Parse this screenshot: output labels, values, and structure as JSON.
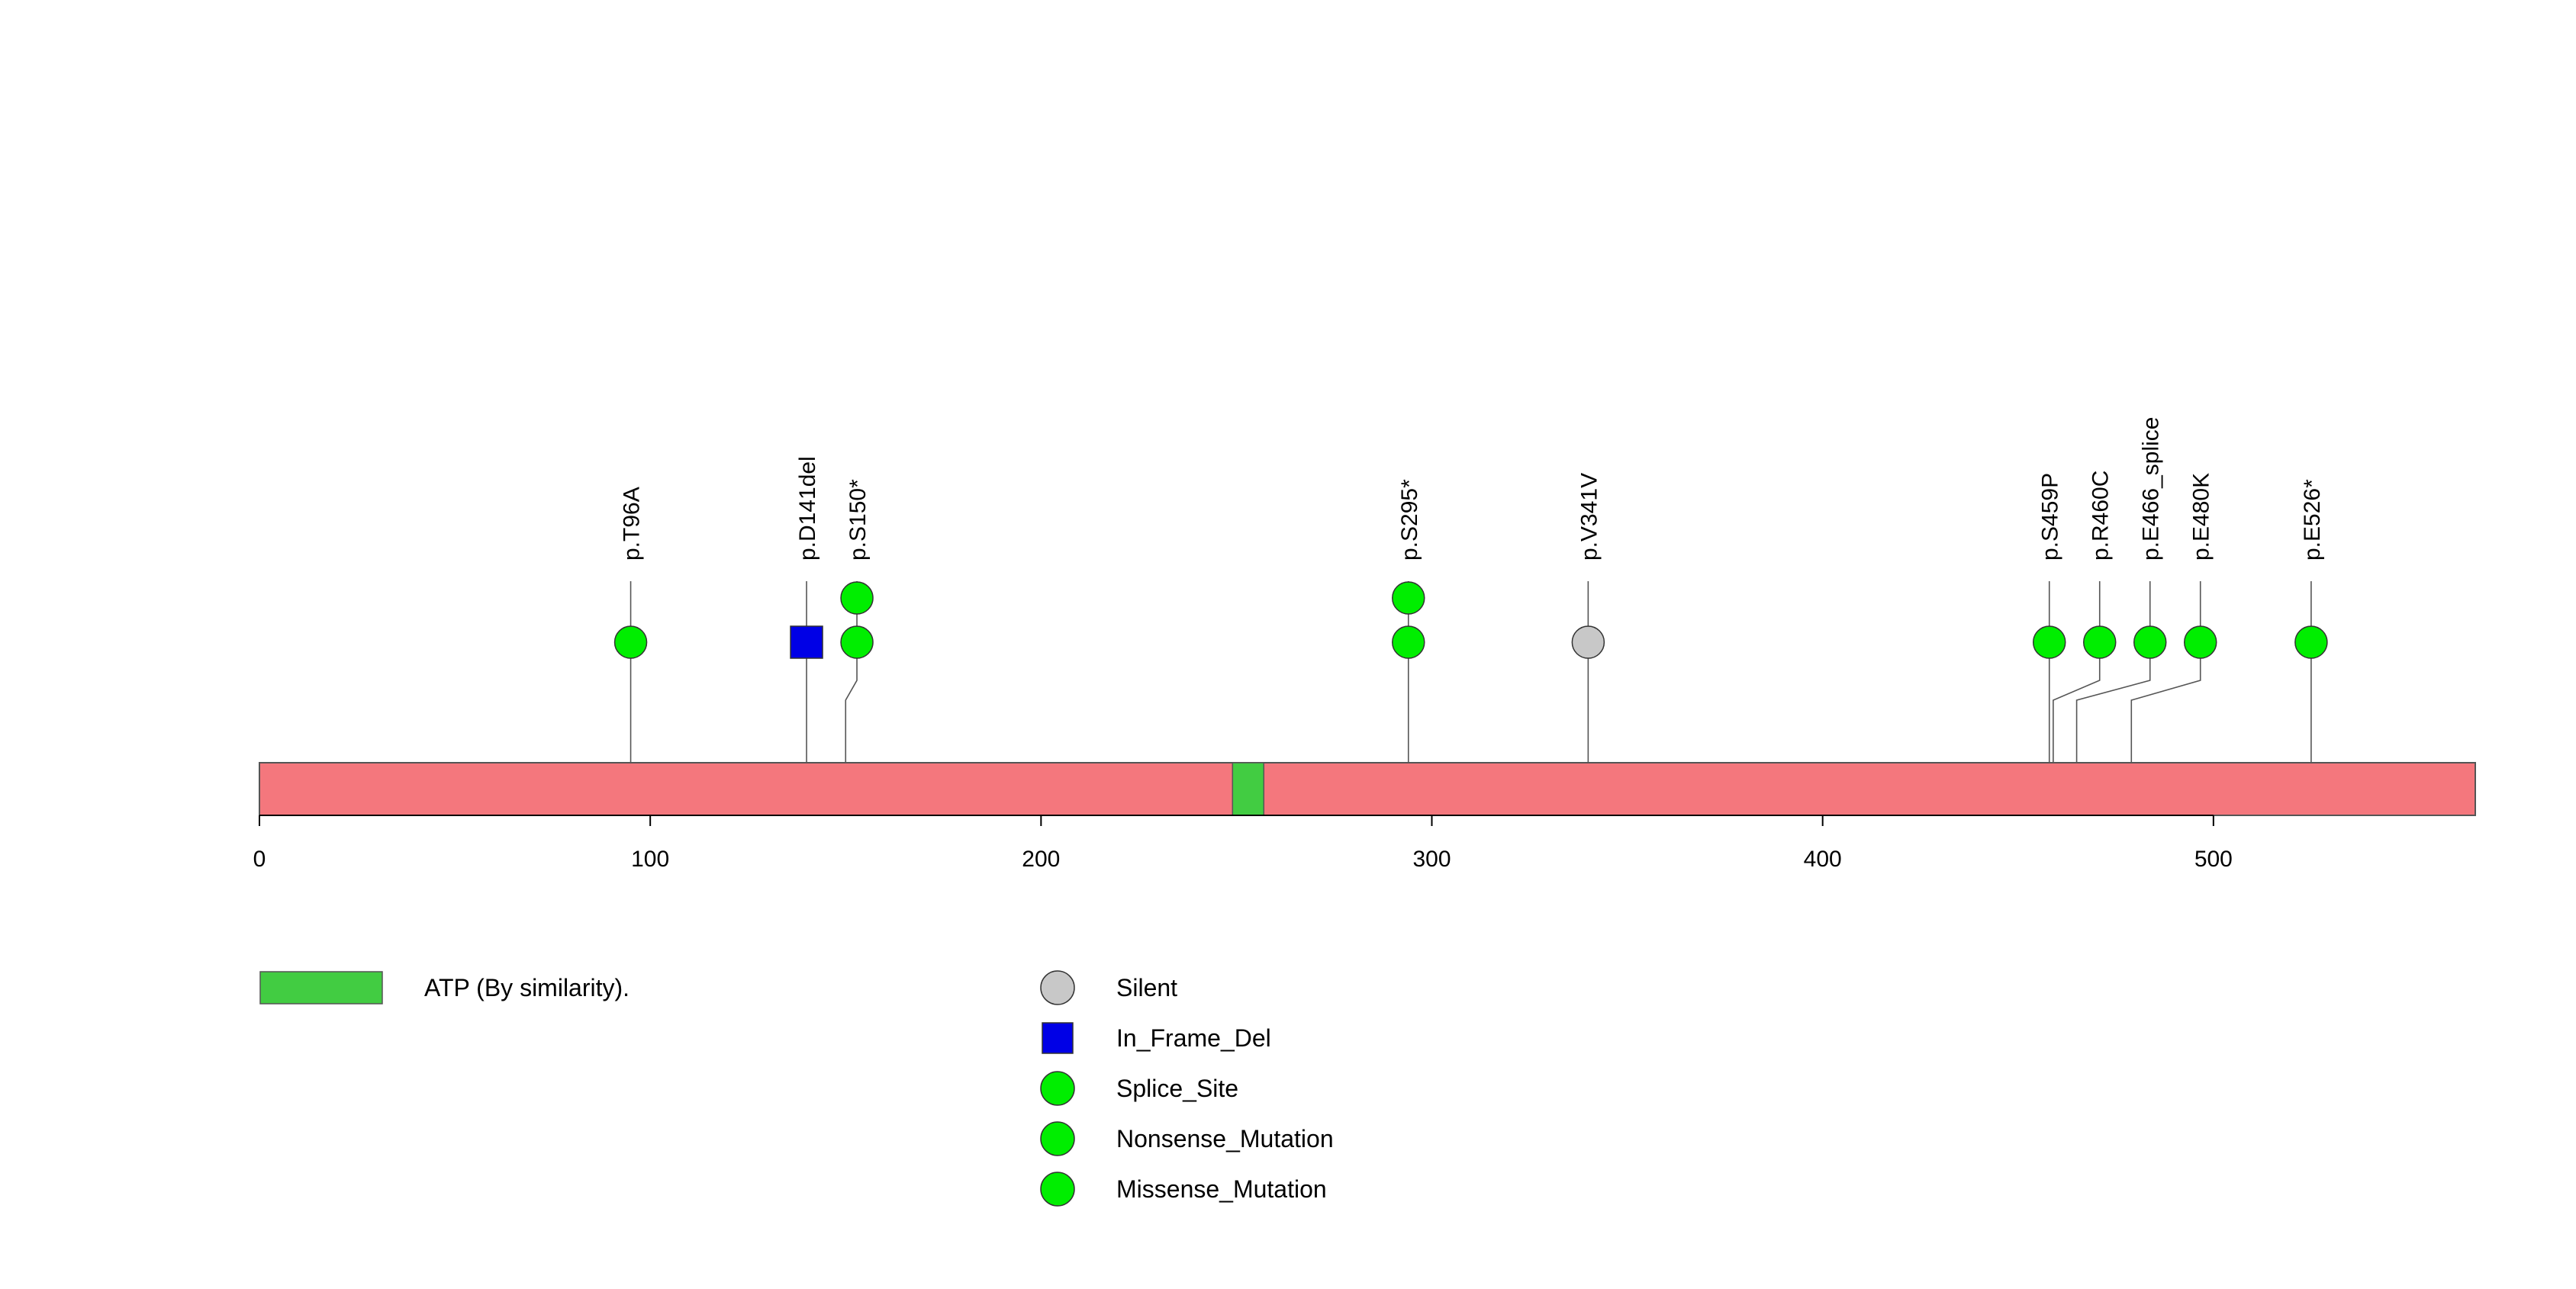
{
  "chart_data": {
    "type": "lollipop",
    "protein_length": 567,
    "x_ticks": [
      0,
      100,
      200,
      300,
      400,
      500
    ],
    "xlim": [
      0,
      567
    ],
    "colors": {
      "protein": "#f4777d",
      "domain": "#42cc42",
      "silent": "#c8c8c8",
      "in_frame_del": "#0000e6",
      "splice_site": "#00ee00",
      "nonsense": "#00ee00",
      "missense": "#00ee00"
    },
    "domains": [
      {
        "name": "ATP (By similarity).",
        "start": 249,
        "end": 257
      }
    ],
    "mutations": [
      {
        "label": "p.T96A",
        "position": 95,
        "count": 1,
        "type": "Missense_Mutation",
        "shape": "circle"
      },
      {
        "label": "p.D141del",
        "position": 140,
        "count": 1,
        "type": "In_Frame_Del",
        "shape": "square"
      },
      {
        "label": "p.S150*",
        "position": 150,
        "count": 2,
        "type": "Nonsense_Mutation",
        "shape": "circle"
      },
      {
        "label": "p.S295*",
        "position": 294,
        "count": 2,
        "type": "Nonsense_Mutation",
        "shape": "circle"
      },
      {
        "label": "p.V341V",
        "position": 340,
        "count": 1,
        "type": "Silent",
        "shape": "circle"
      },
      {
        "label": "p.S459P",
        "position": 458,
        "count": 1,
        "type": "Missense_Mutation",
        "shape": "circle"
      },
      {
        "label": "p.R460C",
        "position": 459,
        "count": 1,
        "type": "Missense_Mutation",
        "shape": "circle"
      },
      {
        "label": "p.E466_splice",
        "position": 465,
        "count": 1,
        "type": "Splice_Site",
        "shape": "circle"
      },
      {
        "label": "p.E480K",
        "position": 479,
        "count": 1,
        "type": "Missense_Mutation",
        "shape": "circle"
      },
      {
        "label": "p.E526*",
        "position": 525,
        "count": 1,
        "type": "Nonsense_Mutation",
        "shape": "circle"
      }
    ],
    "legend_domains": [
      {
        "label": "ATP (By similarity).",
        "color": "#42cc42"
      }
    ],
    "legend_mutations": [
      {
        "label": "Silent",
        "shape": "circle",
        "color": "#c8c8c8"
      },
      {
        "label": "In_Frame_Del",
        "shape": "square",
        "color": "#0000e6"
      },
      {
        "label": "Splice_Site",
        "shape": "circle",
        "color": "#00ee00"
      },
      {
        "label": "Nonsense_Mutation",
        "shape": "circle",
        "color": "#00ee00"
      },
      {
        "label": "Missense_Mutation",
        "shape": "circle",
        "color": "#00ee00"
      }
    ]
  }
}
